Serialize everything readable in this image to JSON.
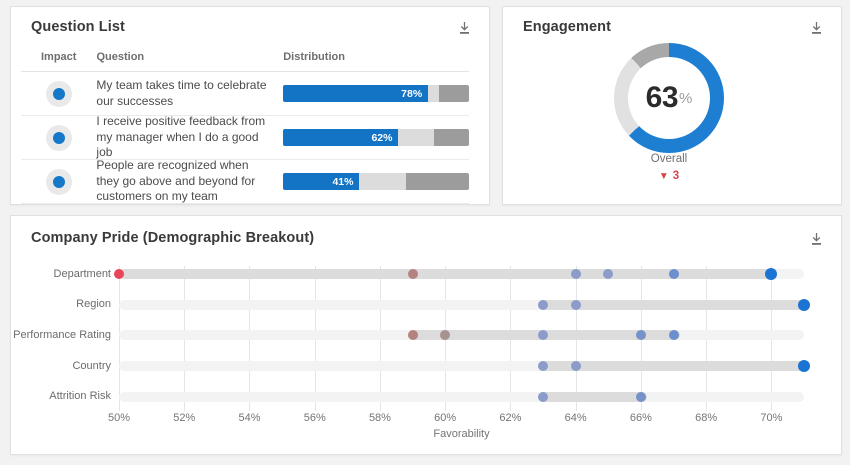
{
  "panels": {
    "question_list": {
      "title": "Question List",
      "download_icon": "download-icon",
      "columns": {
        "impact": "Impact",
        "question": "Question",
        "distribution": "Distribution"
      },
      "rows": [
        {
          "question": "My team takes time to celebrate our successes",
          "favorable": 78,
          "neutral": 6,
          "unfavorable": 16,
          "label": "78%"
        },
        {
          "question": "I receive positive feedback from my manager when I do a good job",
          "favorable": 62,
          "neutral": 19,
          "unfavorable": 19,
          "label": "62%"
        },
        {
          "question": "People are recognized when they go above and beyond for customers on my team",
          "favorable": 41,
          "neutral": 25,
          "unfavorable": 34,
          "label": "41%"
        }
      ],
      "colors": {
        "favorable": "#1373c5",
        "neutral": "#dcdcdc",
        "unfavorable": "#9c9c9c",
        "impact_dot": "#1678c8"
      }
    },
    "engagement": {
      "title": "Engagement",
      "download_icon": "download-icon",
      "value_label": "63",
      "unit": "%",
      "caption": "Overall",
      "delta": {
        "direction": "down",
        "arrow": "▼",
        "value": "3",
        "color": "#d9414e"
      },
      "segments": [
        {
          "name": "favorable",
          "value": 63,
          "color": "#1e7fd2"
        },
        {
          "name": "neutral",
          "value": 25,
          "color": "#e1e1e1"
        },
        {
          "name": "unfavorable",
          "value": 12,
          "color": "#a8a8a8"
        }
      ]
    },
    "company_pride": {
      "title": "Company Pride (Demographic Breakout)",
      "download_icon": "download-icon"
    }
  },
  "chart_data": {
    "type": "scatter",
    "title": "Company Pride (Demographic Breakout)",
    "xlabel": "Favorability",
    "xlim": [
      50,
      71
    ],
    "grid": true,
    "ticks": [
      50,
      52,
      54,
      56,
      58,
      60,
      62,
      64,
      66,
      68,
      70
    ],
    "tick_suffix": "%",
    "categories": [
      "Department",
      "Region",
      "Performance Rating",
      "Country",
      "Attrition Risk"
    ],
    "rows": [
      {
        "category": "Department",
        "range": [
          50,
          70
        ],
        "points": [
          {
            "x": 50,
            "color": "#e84557"
          },
          {
            "x": 59,
            "color": "#b5837f"
          },
          {
            "x": 64,
            "color": "#8b9cca"
          },
          {
            "x": 65,
            "color": "#8b9cca"
          },
          {
            "x": 67,
            "color": "#6d8ecf"
          },
          {
            "x": 70,
            "color": "#1b74d3",
            "emphasis": true
          }
        ]
      },
      {
        "category": "Region",
        "range": [
          63,
          71
        ],
        "points": [
          {
            "x": 63,
            "color": "#8b9cca"
          },
          {
            "x": 64,
            "color": "#8b9cca"
          },
          {
            "x": 71,
            "color": "#1b74d3",
            "emphasis": true
          }
        ]
      },
      {
        "category": "Performance Rating",
        "range": [
          59,
          67
        ],
        "points": [
          {
            "x": 59,
            "color": "#b5837f"
          },
          {
            "x": 60,
            "color": "#a69390"
          },
          {
            "x": 63,
            "color": "#8b9cca"
          },
          {
            "x": 66,
            "color": "#7792c8"
          },
          {
            "x": 67,
            "color": "#6d8ecf"
          }
        ]
      },
      {
        "category": "Country",
        "range": [
          63,
          71
        ],
        "points": [
          {
            "x": 63,
            "color": "#8b9cca"
          },
          {
            "x": 64,
            "color": "#8b9cca"
          },
          {
            "x": 71,
            "color": "#1b74d3",
            "emphasis": true
          }
        ]
      },
      {
        "category": "Attrition Risk",
        "range": [
          63,
          66
        ],
        "points": [
          {
            "x": 63,
            "color": "#8b9cca"
          },
          {
            "x": 66,
            "color": "#7792c8"
          }
        ]
      }
    ]
  }
}
